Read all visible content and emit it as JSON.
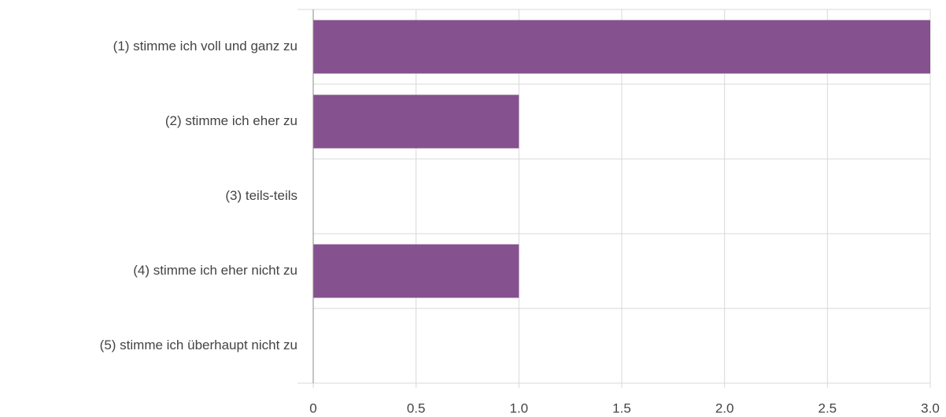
{
  "chart_data": {
    "type": "bar",
    "orientation": "horizontal",
    "categories": [
      "(1) stimme ich voll und ganz zu",
      "(2) stimme ich eher zu",
      "(3) teils-teils",
      "(4) stimme ich eher nicht zu",
      "(5) stimme ich überhaupt nicht zu"
    ],
    "values": [
      3,
      1,
      0,
      1,
      0
    ],
    "color": "#86518f",
    "xlim": [
      0,
      3
    ],
    "xticks": [
      0,
      0.5,
      {
        "value": 1,
        "label": "1.0"
      },
      1.5,
      {
        "value": 2,
        "label": "2.0"
      },
      2.5,
      {
        "value": 3,
        "label": "3.0"
      }
    ],
    "grid": true
  }
}
